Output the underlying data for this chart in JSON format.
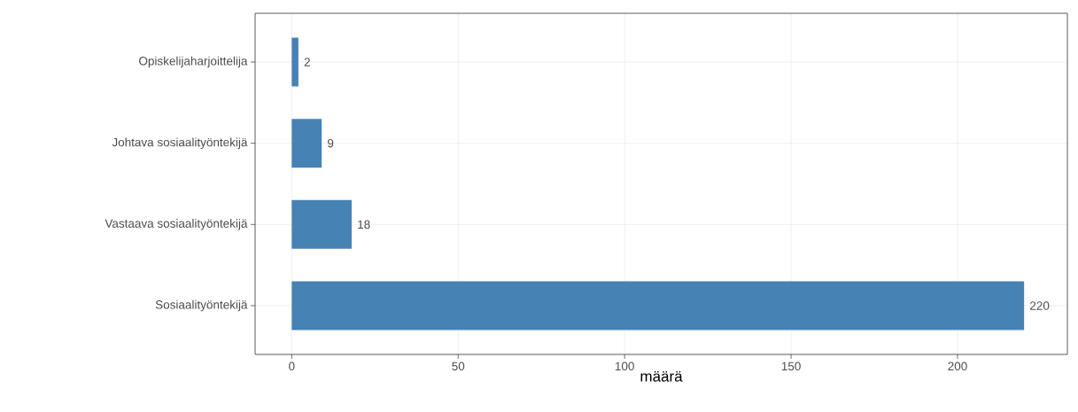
{
  "chart_data": {
    "type": "bar",
    "orientation": "horizontal",
    "categories": [
      "Opiskelijaharjoittelija",
      "Johtava sosiaalityöntekijä",
      "Vastaava sosiaalityöntekijä",
      "Sosiaalityöntekijä"
    ],
    "values": [
      2,
      9,
      18,
      220
    ],
    "color": "#4682b4",
    "data_labels": true,
    "xlabel": "määrä",
    "xlim": [
      -11,
      233
    ],
    "xticks": [
      0,
      50,
      100,
      150,
      200
    ],
    "grid": true
  }
}
